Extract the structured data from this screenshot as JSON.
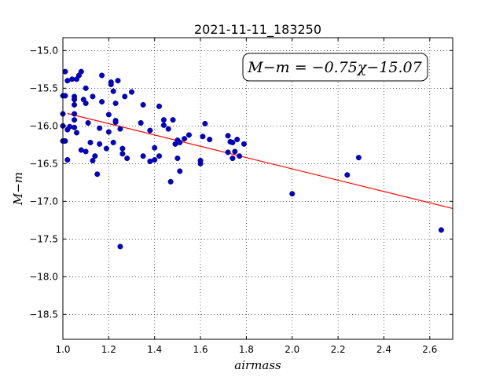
{
  "chart_data": {
    "type": "scatter",
    "title": "2021-11-11_183250",
    "xlabel": "airmass",
    "ylabel": "M−m",
    "xlim": [
      1.0,
      2.7
    ],
    "ylim": [
      -18.83,
      -14.83
    ],
    "y_inverted": true,
    "grid": true,
    "x_ticks": [
      1.0,
      1.2,
      1.4,
      1.6,
      1.8,
      2.0,
      2.2,
      2.4,
      2.6
    ],
    "x_tick_labels": [
      "1.0",
      "1.2",
      "1.4",
      "1.6",
      "1.8",
      "2.0",
      "2.2",
      "2.4",
      "2.6"
    ],
    "y_ticks": [
      -15.0,
      -15.5,
      -16.0,
      -16.5,
      -17.0,
      -17.5,
      -18.0,
      -18.5
    ],
    "y_tick_labels": [
      "−15.0",
      "−15.5",
      "−16.0",
      "−16.5",
      "−17.0",
      "−17.5",
      "−18.0",
      "−18.5"
    ],
    "annotation": "M−m = −0.75χ−15.07",
    "fit_line": {
      "slope": -0.75,
      "intercept": -15.07,
      "color": "#ff0000"
    },
    "point_color": "#0000cc",
    "points": [
      [
        1.0,
        -15.6
      ],
      [
        1.0,
        -15.84
      ],
      [
        1.0,
        -16.0
      ],
      [
        1.0,
        -16.2
      ],
      [
        1.01,
        -15.28
      ],
      [
        1.01,
        -15.6
      ],
      [
        1.01,
        -16.2
      ],
      [
        1.02,
        -15.4
      ],
      [
        1.02,
        -16.05
      ],
      [
        1.02,
        -16.45
      ],
      [
        1.03,
        -16.01
      ],
      [
        1.04,
        -15.38
      ],
      [
        1.05,
        -15.61
      ],
      [
        1.05,
        -15.65
      ],
      [
        1.05,
        -15.72
      ],
      [
        1.05,
        -15.84
      ],
      [
        1.05,
        -15.92
      ],
      [
        1.05,
        -16.02
      ],
      [
        1.06,
        -15.38
      ],
      [
        1.06,
        -16.09
      ],
      [
        1.07,
        -15.33
      ],
      [
        1.08,
        -15.28
      ],
      [
        1.08,
        -16.32
      ],
      [
        1.09,
        -15.65
      ],
      [
        1.1,
        -15.5
      ],
      [
        1.1,
        -15.7
      ],
      [
        1.1,
        -16.34
      ],
      [
        1.11,
        -15.96
      ],
      [
        1.12,
        -16.22
      ],
      [
        1.13,
        -15.61
      ],
      [
        1.13,
        -16.46
      ],
      [
        1.14,
        -16.4
      ],
      [
        1.15,
        -16.64
      ],
      [
        1.16,
        -16.03
      ],
      [
        1.16,
        -16.24
      ],
      [
        1.17,
        -15.68
      ],
      [
        1.17,
        -15.33
      ],
      [
        1.19,
        -16.3
      ],
      [
        1.2,
        -15.85
      ],
      [
        1.2,
        -16.08
      ],
      [
        1.21,
        -15.42
      ],
      [
        1.21,
        -15.45
      ],
      [
        1.22,
        -15.54
      ],
      [
        1.22,
        -16.22
      ],
      [
        1.23,
        -15.7
      ],
      [
        1.23,
        -15.93
      ],
      [
        1.23,
        -15.95
      ],
      [
        1.24,
        -15.4
      ],
      [
        1.25,
        -16.04
      ],
      [
        1.25,
        -17.6
      ],
      [
        1.26,
        -16.3
      ],
      [
        1.26,
        -16.37
      ],
      [
        1.27,
        -15.61
      ],
      [
        1.28,
        -16.43
      ],
      [
        1.3,
        -15.55
      ],
      [
        1.34,
        -15.96
      ],
      [
        1.35,
        -15.72
      ],
      [
        1.35,
        -16.4
      ],
      [
        1.38,
        -16.06
      ],
      [
        1.38,
        -16.47
      ],
      [
        1.4,
        -16.29
      ],
      [
        1.4,
        -16.45
      ],
      [
        1.42,
        -15.74
      ],
      [
        1.42,
        -16.4
      ],
      [
        1.44,
        -15.92
      ],
      [
        1.44,
        -15.99
      ],
      [
        1.46,
        -16.04
      ],
      [
        1.47,
        -16.74
      ],
      [
        1.48,
        -15.92
      ],
      [
        1.49,
        -16.24
      ],
      [
        1.5,
        -16.19
      ],
      [
        1.5,
        -16.43
      ],
      [
        1.51,
        -16.22
      ],
      [
        1.51,
        -16.6
      ],
      [
        1.53,
        -16.17
      ],
      [
        1.55,
        -16.12
      ],
      [
        1.6,
        -16.46
      ],
      [
        1.6,
        -16.5
      ],
      [
        1.61,
        -16.14
      ],
      [
        1.62,
        -15.97
      ],
      [
        1.64,
        -16.18
      ],
      [
        1.72,
        -16.13
      ],
      [
        1.72,
        -16.35
      ],
      [
        1.73,
        -16.21
      ],
      [
        1.74,
        -16.43
      ],
      [
        1.74,
        -16.22
      ],
      [
        1.75,
        -16.34
      ],
      [
        1.76,
        -16.18
      ],
      [
        1.77,
        -16.4
      ],
      [
        1.79,
        -16.24
      ],
      [
        2.0,
        -16.9
      ],
      [
        2.24,
        -16.65
      ],
      [
        2.29,
        -16.42
      ],
      [
        2.65,
        -17.38
      ]
    ]
  }
}
